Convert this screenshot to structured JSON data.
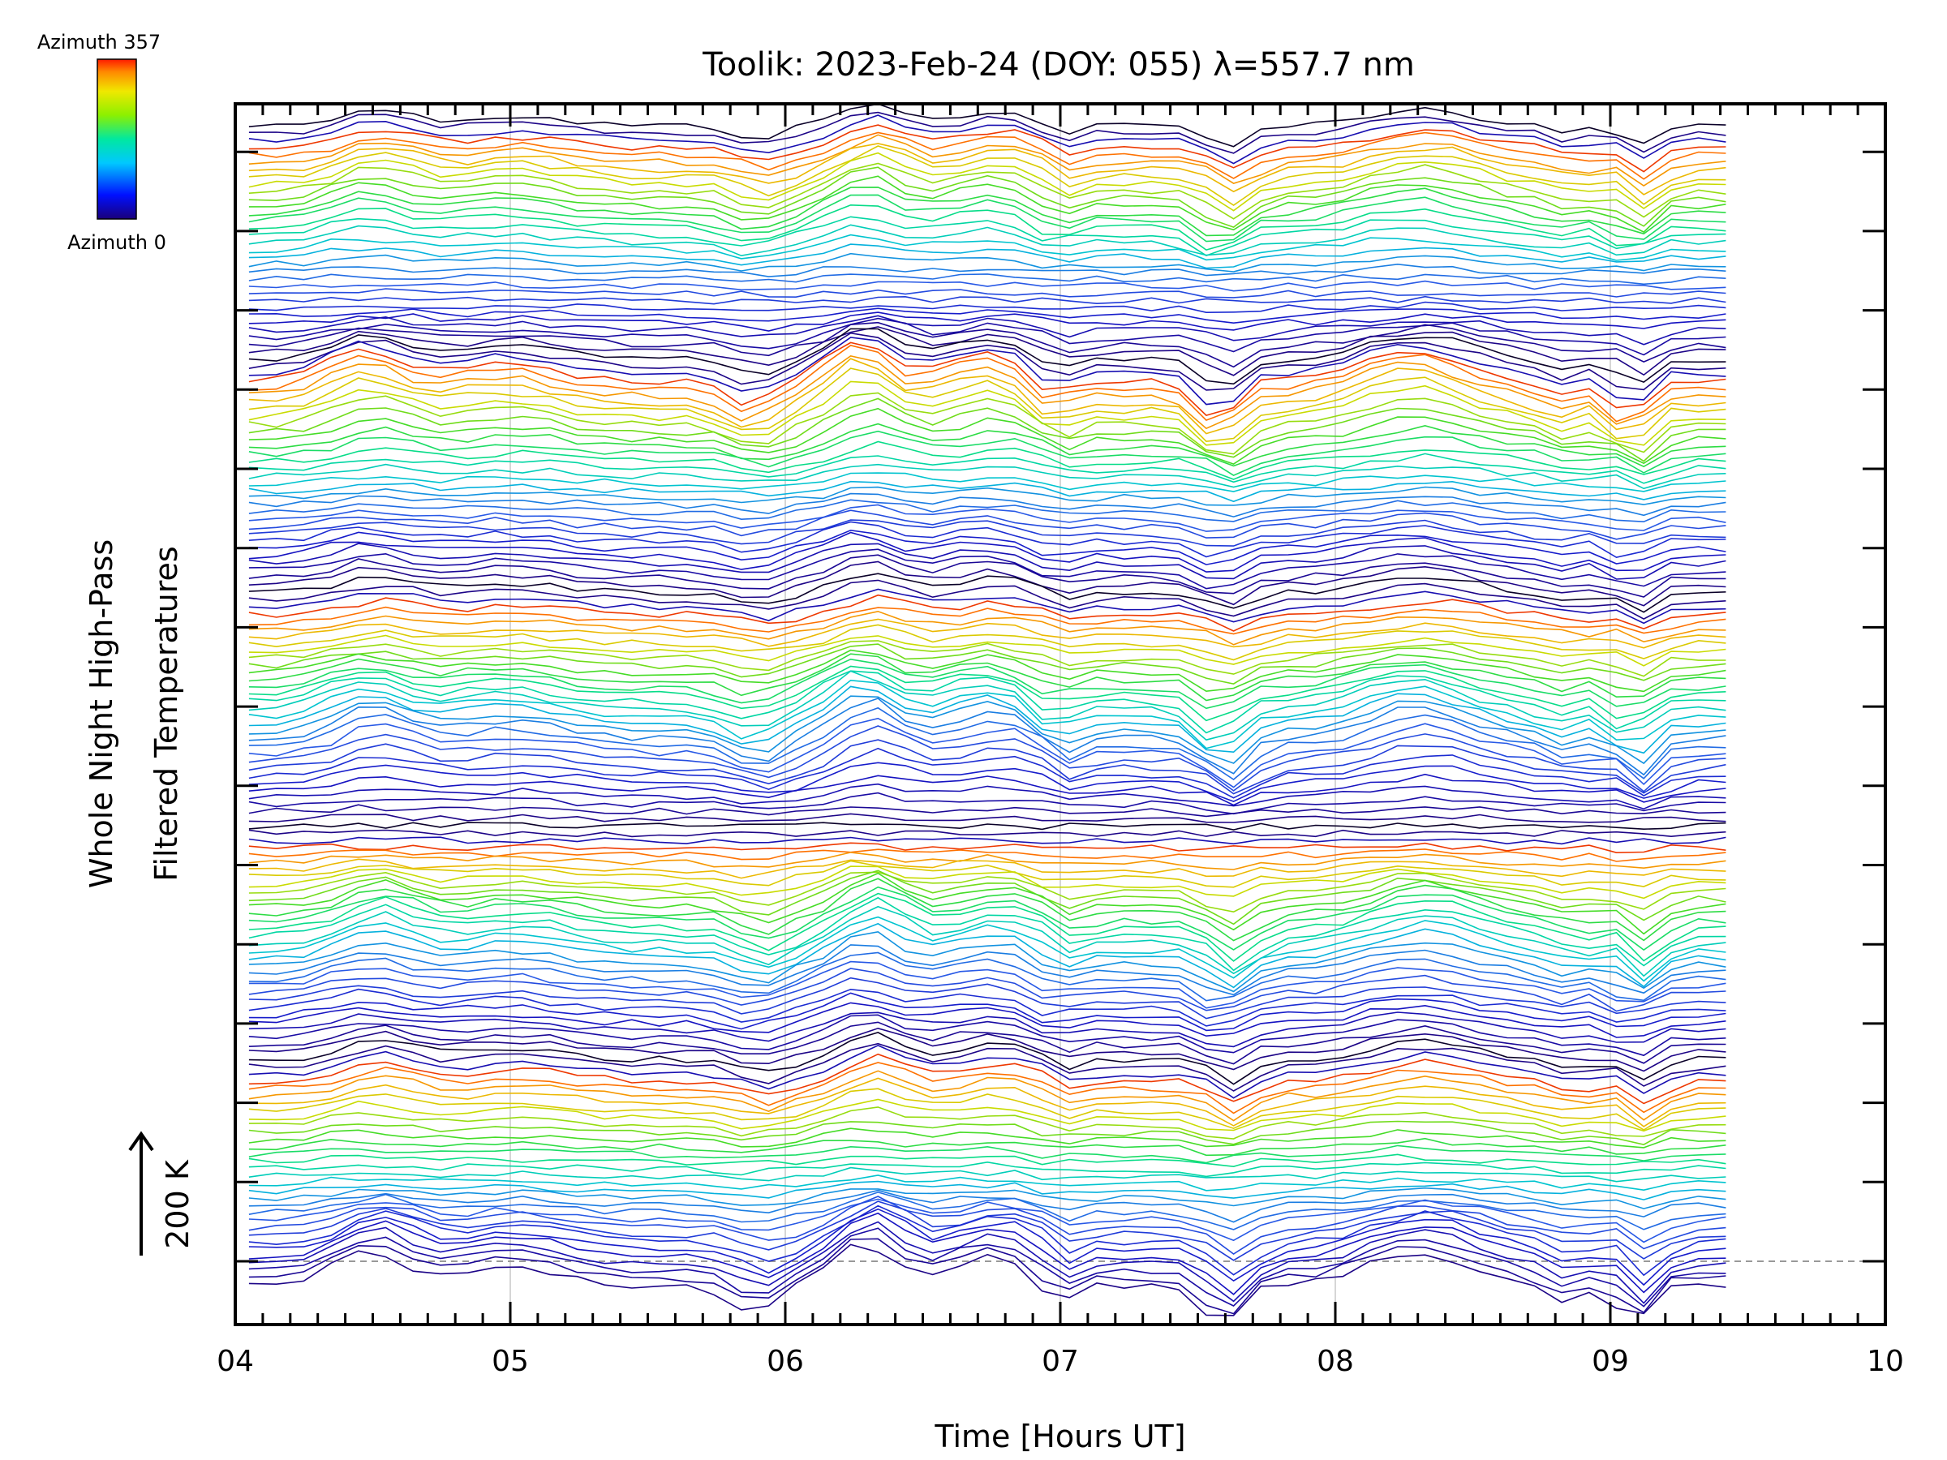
{
  "chart_data": {
    "type": "line",
    "title": "Toolik: 2023-Feb-24 (DOY: 055) λ=557.7 nm",
    "xlabel": "Time [Hours UT]",
    "ylabel_line1": "Whole Night High-Pass",
    "ylabel_line2": "Filtered Temperatures",
    "xlim": [
      4,
      10
    ],
    "x_tick_labels": [
      "04",
      "05",
      "06",
      "07",
      "08",
      "09",
      "10"
    ],
    "x_data_range": [
      4.05,
      9.42
    ],
    "grid": "vertical lines at each hour",
    "scale_bar_label": "200 K",
    "colorbar": {
      "top_label": "Azimuth  357",
      "bottom_label": "Azimuth  0",
      "colormap": "rainbow (dark blue → red)"
    },
    "num_traces": 160,
    "trace_offset_note": "traces stacked vertically, one per zenith/azimuth bin, colored by azimuth",
    "colors": {
      "axis": "#000000",
      "grid": "#c8c8c8",
      "zero_line": "#999999"
    }
  }
}
